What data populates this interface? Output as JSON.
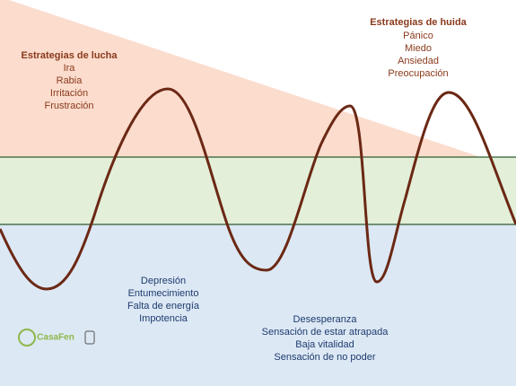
{
  "fight": {
    "title": "Estrategias de lucha",
    "items": [
      "Ira",
      "Rabia",
      "Irritación",
      "Frustración"
    ]
  },
  "flight": {
    "title": "Estrategias de huida",
    "items": [
      "Pánico",
      "Miedo",
      "Ansiedad",
      "Preocupación"
    ]
  },
  "freeze_left": {
    "items": [
      "Depresión",
      "Entumecimiento",
      "Falta de energía",
      "Impotencia"
    ]
  },
  "freeze_right": {
    "items": [
      "Desesperanza",
      "Sensación de estar atrapada",
      "Baja vitalidad",
      "Sensación de no poder"
    ]
  },
  "logo": {
    "text": "CasaFen"
  }
}
